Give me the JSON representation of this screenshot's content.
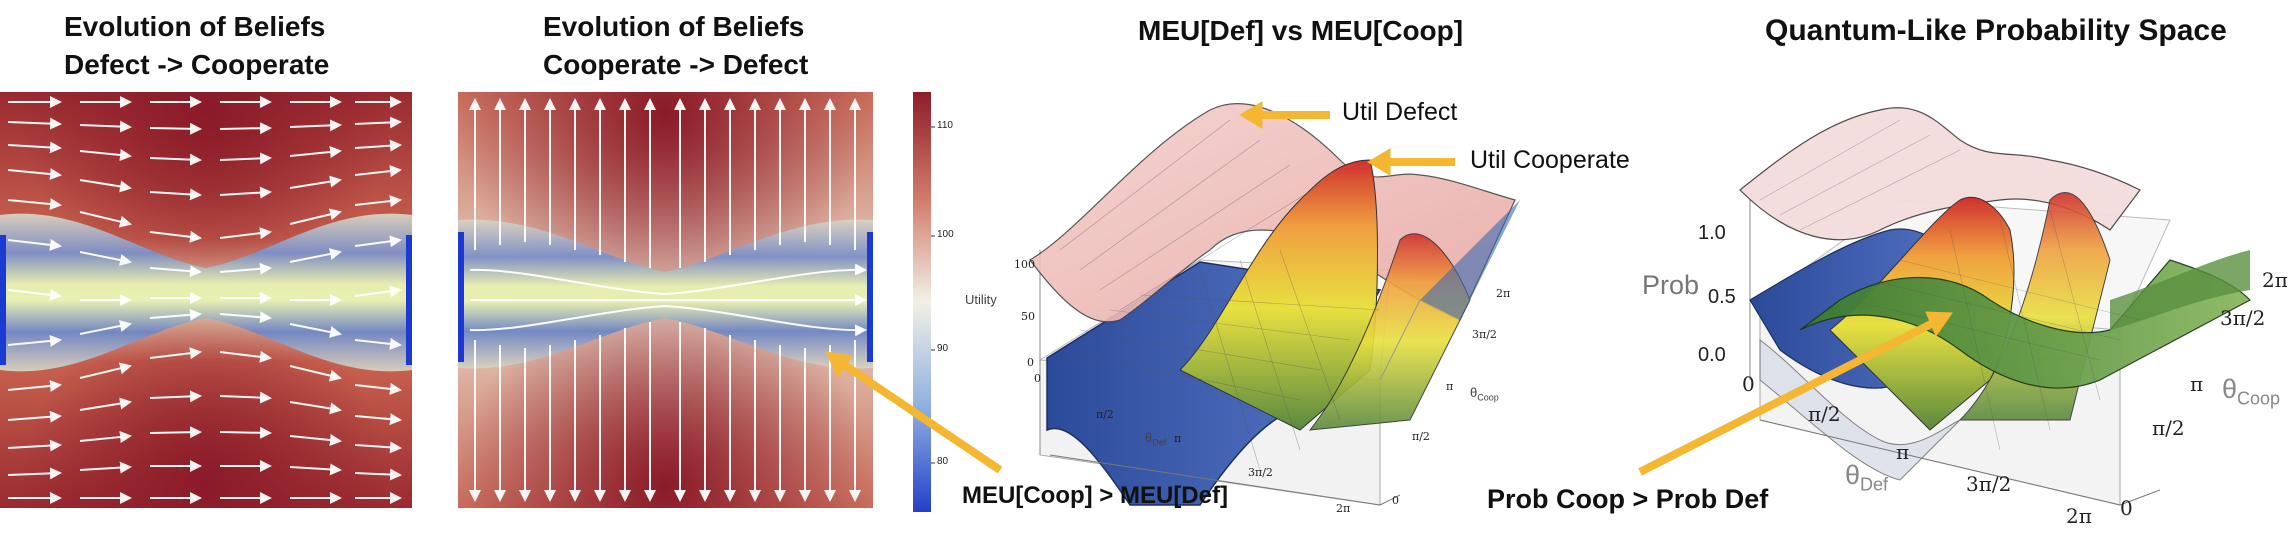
{
  "panel1": {
    "title_line1": "Evolution of Beliefs",
    "title_line2": "Defect -> Cooperate"
  },
  "panel2": {
    "title_line1": "Evolution of Beliefs",
    "title_line2": "Cooperate -> Defect"
  },
  "colorbar": {
    "ticks": [
      "110",
      "100",
      "90",
      "80"
    ],
    "colors": [
      "#8e1d2a",
      "#f2f0e6",
      "#2440c8"
    ]
  },
  "panel3": {
    "title": "MEU[Def] vs MEU[Coop]",
    "annotations": {
      "util_defect": "Util Defect",
      "util_cooperate": "Util Cooperate",
      "meu_compare": "MEU[Coop] > MEU[Def]"
    },
    "axes": {
      "z_label": "Utility",
      "z_ticks": [
        "100",
        "50",
        "0"
      ],
      "x_label_main": "θ",
      "x_label_sub": "Def",
      "y_label_main": "θ",
      "y_label_sub": "Coop",
      "x_ticks": [
        "0",
        "π/2",
        "π",
        "3π/2",
        "2π"
      ],
      "y_ticks": [
        "0",
        "π/2",
        "π",
        "3π/2",
        "2π"
      ]
    }
  },
  "panel4": {
    "title": "Quantum-Like Probability Space",
    "annotation": "Prob Coop > Prob Def",
    "axes": {
      "z_label": "Prob",
      "z_ticks": [
        "1.0",
        "0.5",
        "0.0"
      ],
      "x_label_main": "θ",
      "x_label_sub": "Def",
      "y_label_main": "θ",
      "y_label_sub": "Coop",
      "x_ticks": [
        "0",
        "π/2",
        "π",
        "3π/2",
        "2π"
      ],
      "y_ticks": [
        "0",
        "π/2",
        "π",
        "3π/2",
        "2π"
      ]
    }
  },
  "colors": {
    "arrow": "#f5b731",
    "surface_high": "#b02030",
    "surface_low": "#3050b0"
  }
}
